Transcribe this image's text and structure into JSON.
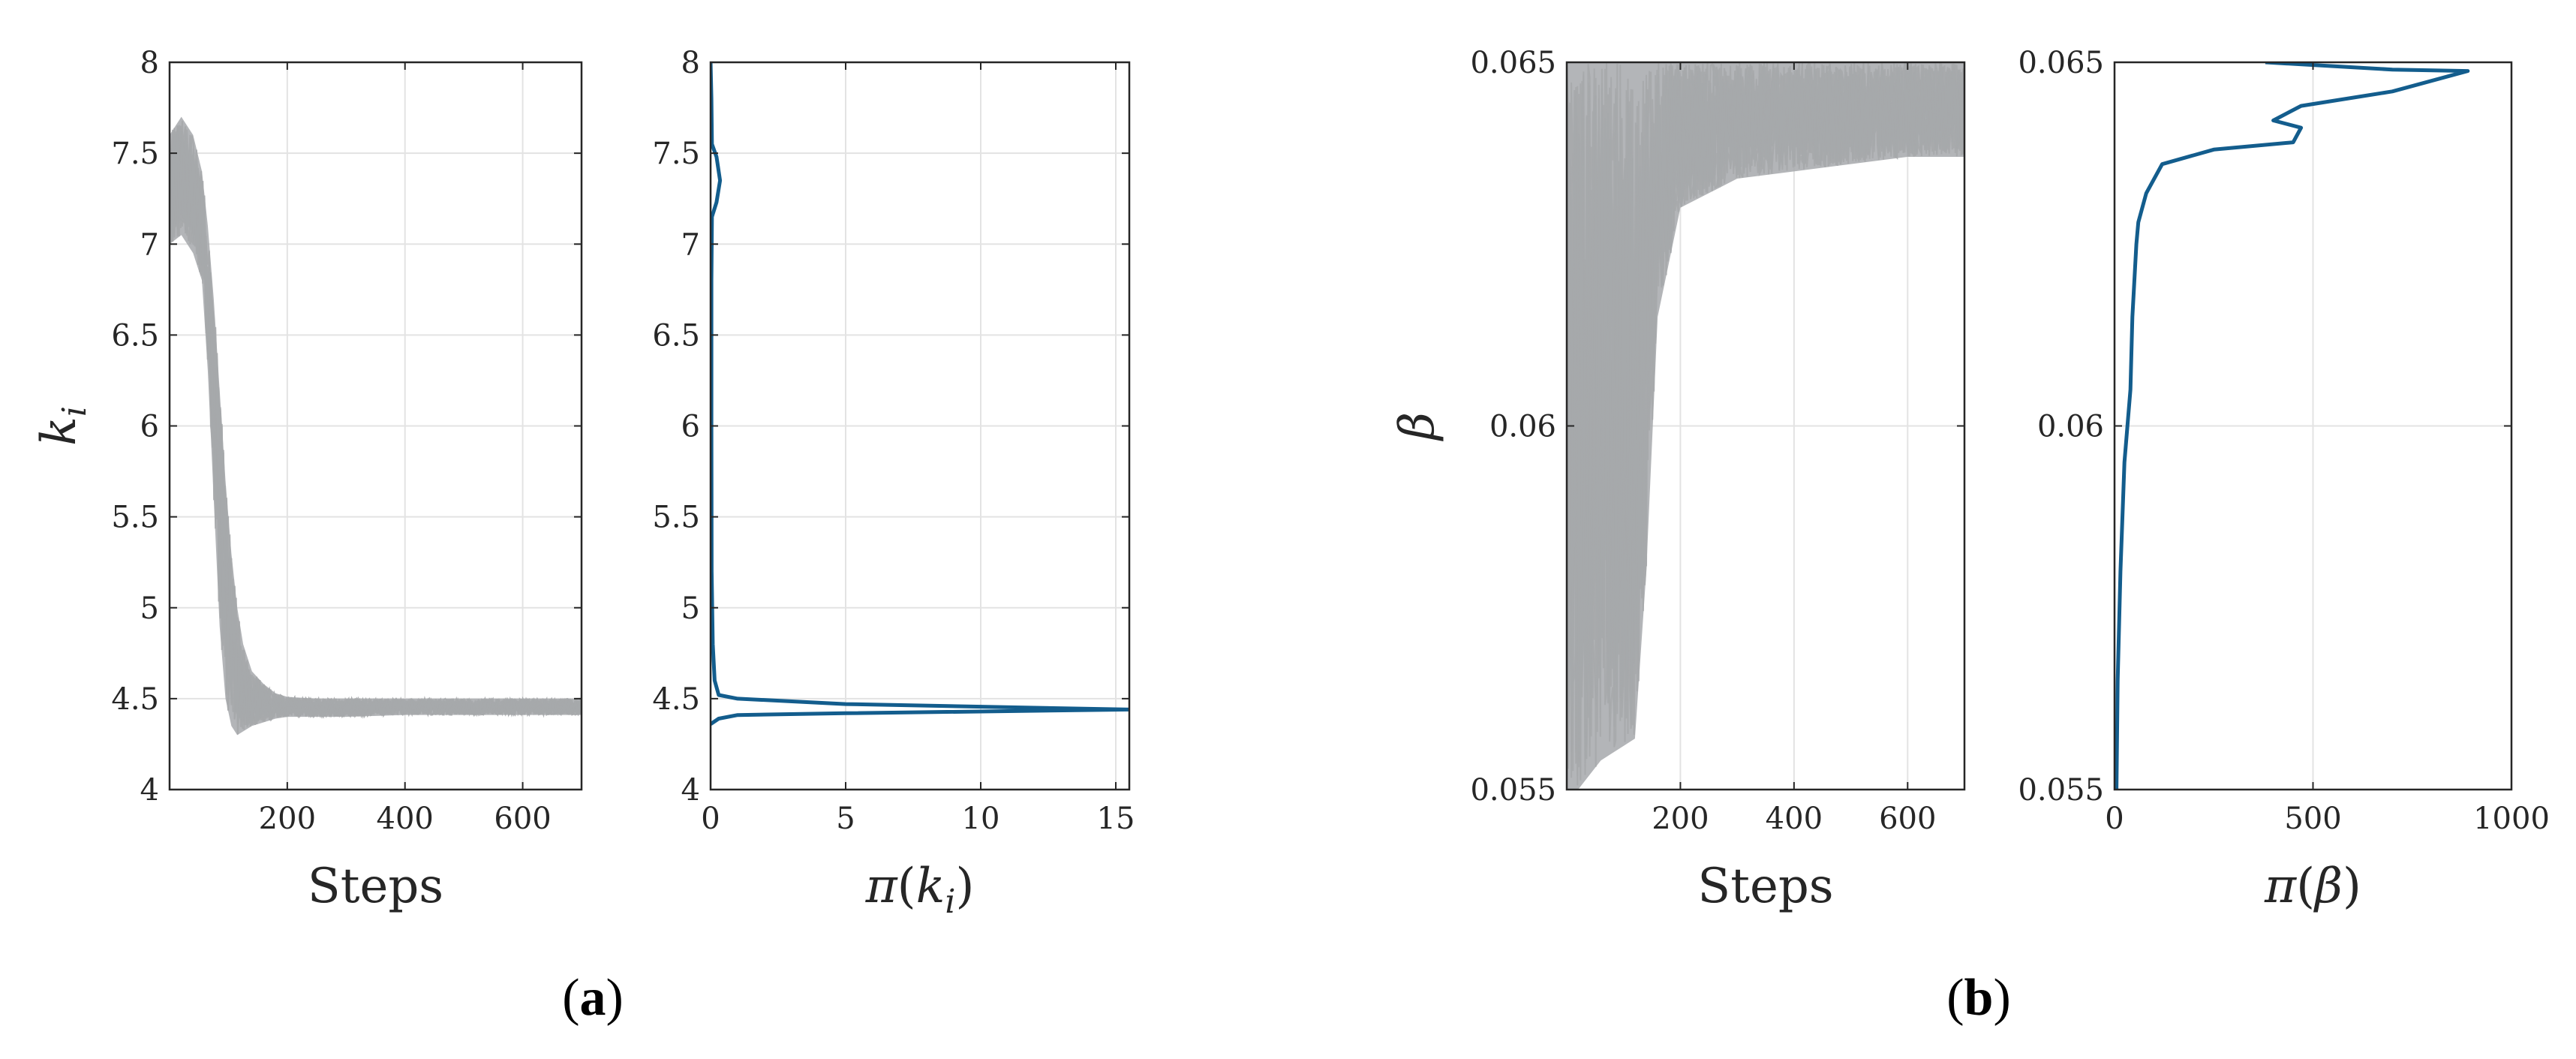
{
  "chart_data": [
    {
      "id": "a-trace",
      "type": "line",
      "panel": "a",
      "description_hidden": false,
      "xlabel": "Steps",
      "ylabel_base": "k",
      "ylabel_sub": "i",
      "xlim": [
        0,
        700
      ],
      "ylim": [
        4,
        8
      ],
      "xticks": [
        200,
        400,
        600
      ],
      "yticks": [
        4,
        4.5,
        5,
        5.5,
        6,
        6.5,
        7,
        7.5,
        8
      ],
      "ytick_labels": [
        "4",
        "4.5",
        "5",
        "5.5",
        "6",
        "6.5",
        "7",
        "7.5",
        "8"
      ],
      "grid": true,
      "series_color": "#a6a8ab",
      "trace_envelope": {
        "x": [
          0,
          20,
          40,
          55,
          65,
          75,
          85,
          95,
          105,
          115,
          125,
          140,
          160,
          180,
          200,
          250,
          300,
          400,
          500,
          600,
          700
        ],
        "upper": [
          7.6,
          7.7,
          7.6,
          7.4,
          7.1,
          6.7,
          6.2,
          5.7,
          5.3,
          5.0,
          4.8,
          4.65,
          4.58,
          4.53,
          4.51,
          4.5,
          4.5,
          4.5,
          4.5,
          4.5,
          4.5
        ],
        "lower": [
          7.0,
          7.05,
          6.95,
          6.8,
          6.3,
          5.6,
          4.9,
          4.5,
          4.35,
          4.3,
          4.32,
          4.35,
          4.37,
          4.39,
          4.4,
          4.4,
          4.4,
          4.41,
          4.41,
          4.41,
          4.41
        ]
      }
    },
    {
      "id": "a-density",
      "type": "line",
      "panel": "a",
      "xlabel_func": "π",
      "xlabel_base": "k",
      "xlabel_sub": "i",
      "xlim": [
        0,
        15.5
      ],
      "ylim": [
        4,
        8
      ],
      "xticks": [
        0,
        5,
        10,
        15
      ],
      "yticks": [
        4,
        4.5,
        5,
        5.5,
        6,
        6.5,
        7,
        7.5,
        8
      ],
      "ytick_labels": [
        "4",
        "4.5",
        "5",
        "5.5",
        "6",
        "6.5",
        "7",
        "7.5",
        "8"
      ],
      "grid": true,
      "series_color": "#135d8d",
      "points": [
        [
          0,
          4.36
        ],
        [
          0.3,
          4.39
        ],
        [
          1,
          4.41
        ],
        [
          5,
          4.42
        ],
        [
          15.5,
          4.44
        ],
        [
          5,
          4.47
        ],
        [
          1,
          4.5
        ],
        [
          0.3,
          4.52
        ],
        [
          0.15,
          4.6
        ],
        [
          0.08,
          4.8
        ],
        [
          0.04,
          5.2
        ],
        [
          0.03,
          6.0
        ],
        [
          0.03,
          6.8
        ],
        [
          0.05,
          7.15
        ],
        [
          0.22,
          7.23
        ],
        [
          0.35,
          7.35
        ],
        [
          0.22,
          7.48
        ],
        [
          0.05,
          7.55
        ],
        [
          0.03,
          7.8
        ],
        [
          0,
          8
        ]
      ]
    },
    {
      "id": "b-trace",
      "type": "line",
      "panel": "b",
      "xlabel": "Steps",
      "ylabel_base": "β",
      "xlim": [
        0,
        700
      ],
      "ylim": [
        0.055,
        0.065
      ],
      "xticks": [
        200,
        400,
        600
      ],
      "yticks": [
        0.055,
        0.06,
        0.065
      ],
      "ytick_labels": [
        "0.055",
        "0.06",
        "0.065"
      ],
      "grid": true,
      "series_color": "#a6a8ab",
      "trace_envelope": {
        "x": [
          0,
          20,
          40,
          60,
          80,
          100,
          120,
          140,
          160,
          200,
          250,
          300,
          400,
          500,
          600,
          700
        ],
        "upper": [
          0.065,
          0.065,
          0.065,
          0.065,
          0.065,
          0.065,
          0.065,
          0.065,
          0.065,
          0.065,
          0.065,
          0.065,
          0.065,
          0.065,
          0.065,
          0.065
        ],
        "lower": [
          0.055,
          0.055,
          0.0552,
          0.0554,
          0.0555,
          0.0556,
          0.0557,
          0.058,
          0.0615,
          0.063,
          0.0632,
          0.0634,
          0.0635,
          0.0636,
          0.0637,
          0.0637
        ]
      }
    },
    {
      "id": "b-density",
      "type": "line",
      "panel": "b",
      "xlabel_func": "π",
      "xlabel_base": "β",
      "xlim": [
        0,
        1000
      ],
      "ylim": [
        0.055,
        0.065
      ],
      "xticks": [
        0,
        500,
        1000
      ],
      "yticks": [
        0.055,
        0.06,
        0.065
      ],
      "ytick_labels": [
        "0.055",
        "0.06",
        "0.065"
      ],
      "grid": true,
      "series_color": "#135d8d",
      "points": [
        [
          5,
          0.055
        ],
        [
          8,
          0.0565
        ],
        [
          15,
          0.058
        ],
        [
          25,
          0.0595
        ],
        [
          40,
          0.0605
        ],
        [
          45,
          0.0615
        ],
        [
          55,
          0.0625
        ],
        [
          60,
          0.0628
        ],
        [
          80,
          0.0632
        ],
        [
          120,
          0.0636
        ],
        [
          250,
          0.0638
        ],
        [
          450,
          0.0639
        ],
        [
          470,
          0.0641
        ],
        [
          400,
          0.0642
        ],
        [
          470,
          0.0644
        ],
        [
          700,
          0.0646
        ],
        [
          890,
          0.06488
        ],
        [
          700,
          0.0649
        ],
        [
          380,
          0.065
        ]
      ]
    }
  ],
  "captions": {
    "a": {
      "open": "(",
      "letter": "a",
      "close": ")"
    },
    "b": {
      "open": "(",
      "letter": "b",
      "close": ")"
    }
  }
}
